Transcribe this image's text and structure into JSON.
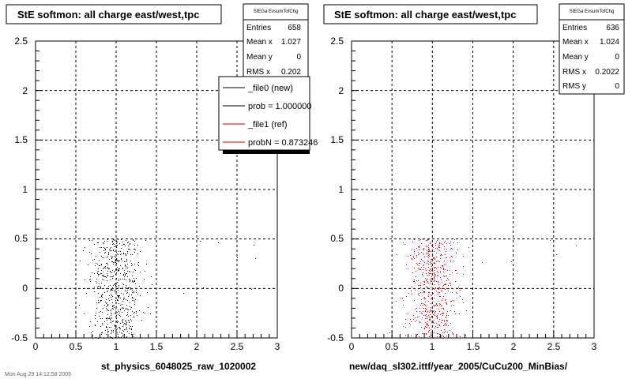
{
  "chart_data": [
    {
      "type": "scatter",
      "title": "StE softmon: all charge east/west,tpc",
      "xlabel": "st_physics_6048025_raw_1020002",
      "ylabel": "",
      "xlim": [
        0,
        3
      ],
      "ylim": [
        -0.5,
        2.5
      ],
      "xticks": [
        "0",
        "0.5",
        "1",
        "1.5",
        "2",
        "2.5",
        "3"
      ],
      "yticks": [
        "-0.5",
        "0",
        "0.5",
        "1",
        "1.5",
        "2",
        "2.5"
      ],
      "grid": true,
      "color": "#000000",
      "point_color": "#000000",
      "point_count": 658,
      "x_center": 1.0,
      "x_spread": 0.2,
      "stats": {
        "title": "StEGa EvsumTofChg",
        "rows": [
          {
            "label": "Entries",
            "value": "658"
          },
          {
            "label": "Mean x",
            "value": "1.027"
          },
          {
            "label": "Mean y",
            "value": "0"
          },
          {
            "label": "RMS x",
            "value": "0.202"
          }
        ]
      },
      "legend": {
        "placement": "top-right",
        "entries": [
          {
            "label": "_file0 (new)",
            "color": "#000000"
          },
          {
            "label": "prob = 1.000000",
            "color": "#000000"
          },
          {
            "label": "_file1 (ref)",
            "color": "#cc0000"
          },
          {
            "label": "probN = 0.873246",
            "color": "#cc0000"
          }
        ]
      }
    },
    {
      "type": "scatter",
      "title": "StE softmon: all charge east/west,tpc",
      "xlabel": "new/daq_sl302.ittf/year_2005/CuCu200_MinBias/",
      "ylabel": "",
      "xlim": [
        0,
        3
      ],
      "ylim": [
        -0.5,
        2.5
      ],
      "xticks": [
        "0",
        "0.5",
        "1",
        "1.5",
        "2",
        "2.5",
        "3"
      ],
      "yticks": [
        "-0.5",
        "0",
        "0.5",
        "1",
        "1.5",
        "2",
        "2.5"
      ],
      "grid": true,
      "color": "#cc0000",
      "point_color": "#cc0000",
      "point_count": 636,
      "x_center": 1.0,
      "x_spread": 0.2,
      "stats": {
        "title": "StEGa EvsumTofChg",
        "rows": [
          {
            "label": "Entries",
            "value": "636"
          },
          {
            "label": "Mean x",
            "value": "1.024"
          },
          {
            "label": "Mean y",
            "value": "0"
          },
          {
            "label": "RMS x",
            "value": "0.2022"
          },
          {
            "label": "RMS y",
            "value": "0"
          }
        ]
      }
    }
  ],
  "footer_text": "Mon Aug 29 14:12:58 2005"
}
